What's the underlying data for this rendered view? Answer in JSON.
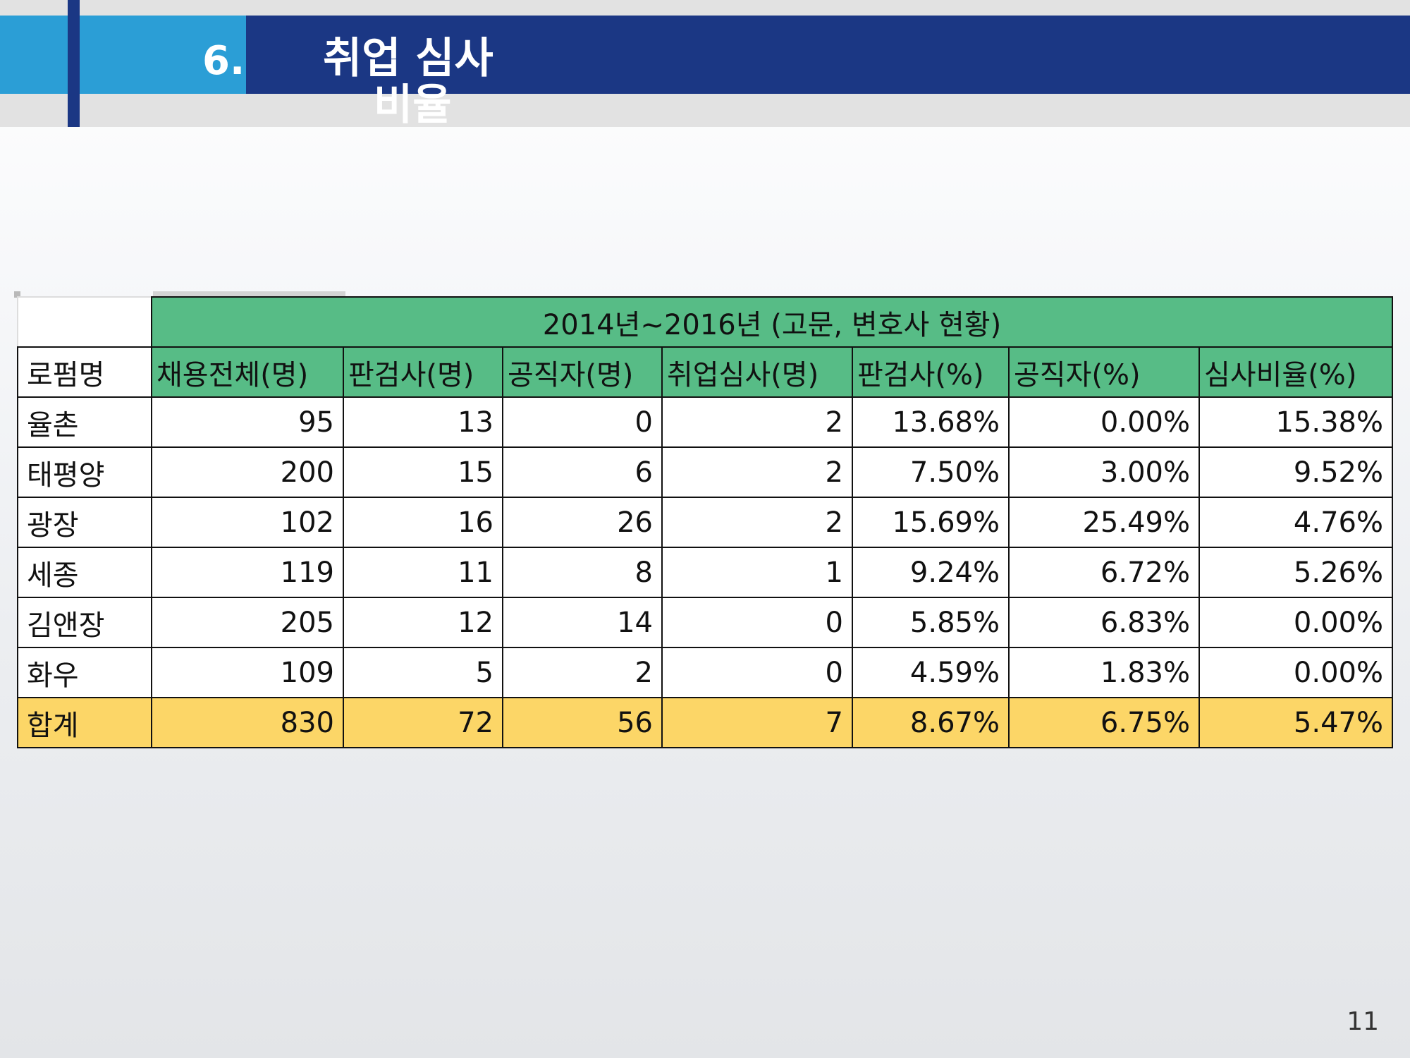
{
  "slide": {
    "number": "6.",
    "title_line1": "취업 심사",
    "title_line2": "비율",
    "page_number": "11"
  },
  "table": {
    "caption": "2014년~2016년 (고문, 변호사 현황)",
    "headers": [
      "로펌명",
      "채용전체(명)",
      "판검사(명)",
      "공직자(명)",
      "취업심사(명)",
      "판검사(%)",
      "공직자(%)",
      "심사비율(%)"
    ],
    "rows": [
      [
        "율촌",
        "95",
        "13",
        "0",
        "2",
        "13.68%",
        "0.00%",
        "15.38%"
      ],
      [
        "태평양",
        "200",
        "15",
        "6",
        "2",
        "7.50%",
        "3.00%",
        "9.52%"
      ],
      [
        "광장",
        "102",
        "16",
        "26",
        "2",
        "15.69%",
        "25.49%",
        "4.76%"
      ],
      [
        "세종",
        "119",
        "11",
        "8",
        "1",
        "9.24%",
        "6.72%",
        "5.26%"
      ],
      [
        "김앤장",
        "205",
        "12",
        "14",
        "0",
        "5.85%",
        "6.83%",
        "0.00%"
      ],
      [
        "화우",
        "109",
        "5",
        "2",
        "0",
        "4.59%",
        "1.83%",
        "0.00%"
      ]
    ],
    "total": [
      "합계",
      "830",
      "72",
      "56",
      "7",
      "8.67%",
      "6.75%",
      "5.47%"
    ]
  },
  "colors": {
    "header_green": "#57bc86",
    "total_yellow": "#fcd667",
    "band_dark_blue": "#1b3784",
    "band_light_blue": "#2b9ed6"
  }
}
